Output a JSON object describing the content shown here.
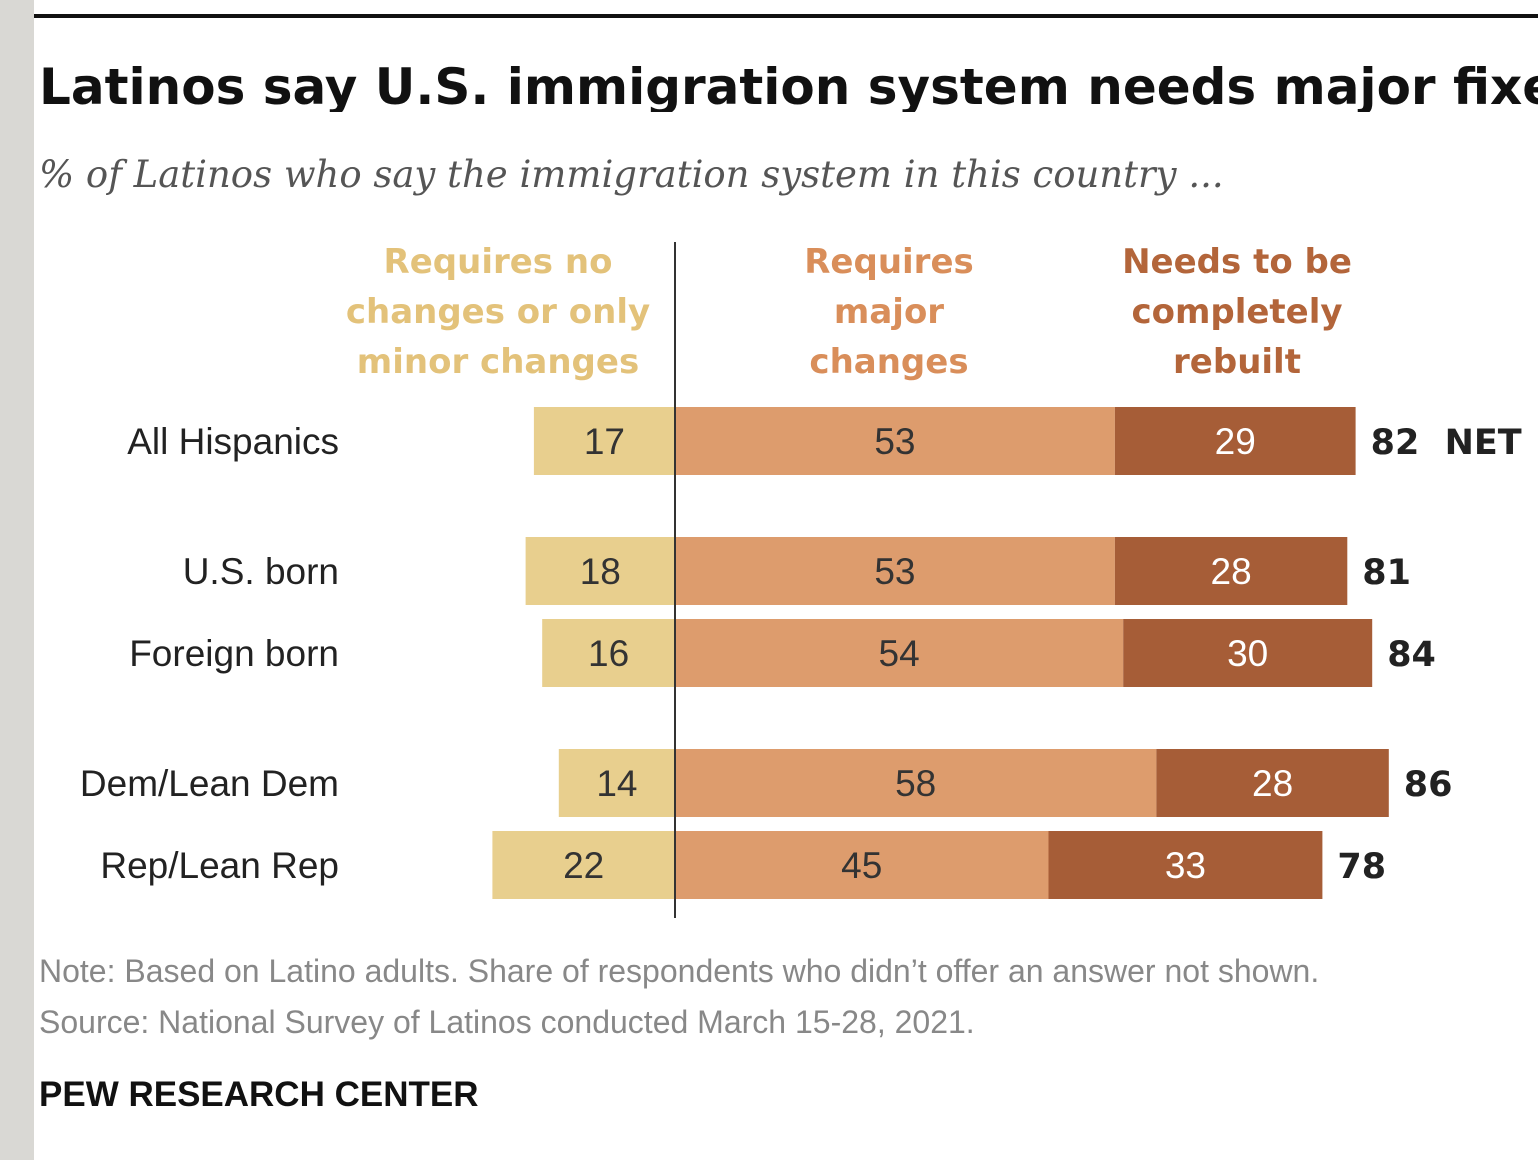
{
  "title": "Latinos say U.S. immigration system needs major fixes",
  "subtitle": "% of Latinos who say the immigration system in this country ...",
  "note": "Note: Based on Latino adults. Share of respondents who didn’t offer an answer not shown.",
  "source": "Source: National Survey of Latinos conducted March 15-28, 2021.",
  "brand": "PEW RESEARCH CENTER",
  "colors": {
    "minor": "#e8cf8e",
    "major": "#dd9c6d",
    "rebuilt": "#a65d37",
    "minor_label": "#e3c27a",
    "major_label": "#d98e5a",
    "rebuilt_label": "#b3653a"
  },
  "chart_data": {
    "type": "bar",
    "orientation": "horizontal diverging stacked",
    "categories": [
      "All Hispanics",
      "U.S. born",
      "Foreign born",
      "Dem/Lean Dem",
      "Rep/Lean Rep"
    ],
    "series": [
      {
        "name": "Requires no changes or only minor changes",
        "header_lines": [
          "Requires no",
          "changes or only",
          "minor changes"
        ],
        "values": [
          17,
          18,
          16,
          14,
          22
        ]
      },
      {
        "name": "Requires major changes",
        "header_lines": [
          "Requires",
          "major",
          "changes"
        ],
        "values": [
          53,
          53,
          54,
          58,
          45
        ]
      },
      {
        "name": "Needs to be completely rebuilt",
        "header_lines": [
          "Needs to be",
          "completely",
          "rebuilt"
        ],
        "values": [
          29,
          28,
          30,
          28,
          33
        ]
      }
    ],
    "net_values": [
      82,
      81,
      84,
      86,
      78
    ],
    "net_label": "NET"
  }
}
